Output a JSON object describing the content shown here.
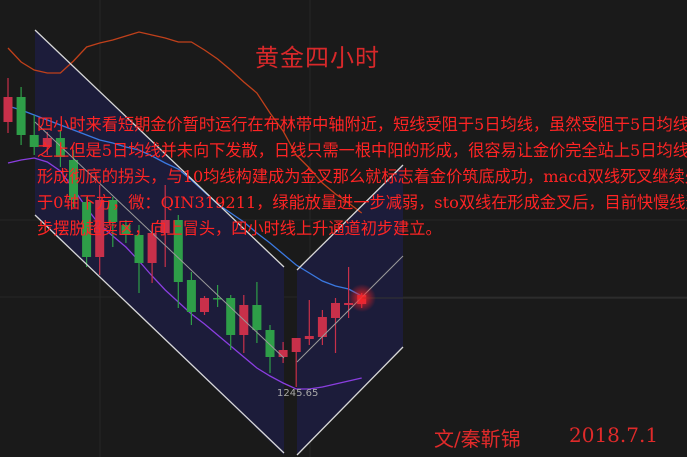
{
  "title": "黄金四小时",
  "paragraph_lines": [
    "四小时来看短期金价暂时运行在布林带中轴附近，短线受阻于5日均线，虽然受阻于5日均线",
    "之上但是5日均线并未向下发散，日线只需一根中阳的形成，很容易让金价完全站上5日均线",
    "形成彻底的拐头，与10均线构建成为金叉那么就标志着金价筑底成功，macd双线死叉继续处",
    "于0轴下方，微：QIN319211，绿能放量进一步减弱，sto双线在形成金叉后，目前快慢线逐",
    "步摆脱超卖区，向上冒头，四小时线上升通道初步建立。"
  ],
  "author": "文/秦靳锦",
  "date": "2018.7.1",
  "colors": {
    "background": "#1a1a1a",
    "up_candle": "#c8304a",
    "down_candle": "#2e9e48",
    "text": "#ff2424",
    "upper_band": "#c0401a",
    "middle_band": "#3a78e0",
    "lower_band": "#8a3ee0",
    "channel_fill": "#1c1c3a"
  },
  "chart_data": {
    "type": "candlestick",
    "title": "黄金四小时",
    "price_label": "1245.65",
    "grid": true,
    "candles": [
      {
        "o": 1272.15,
        "h": 1276.55,
        "l": 1271.05,
        "c": 1274.65
      },
      {
        "o": 1274.65,
        "h": 1275.65,
        "l": 1269.85,
        "c": 1270.85
      },
      {
        "o": 1270.85,
        "h": 1272.85,
        "l": 1268.85,
        "c": 1269.65
      },
      {
        "o": 1269.65,
        "h": 1271.15,
        "l": 1268.85,
        "c": 1270.55
      },
      {
        "o": 1270.55,
        "h": 1271.35,
        "l": 1267.65,
        "c": 1268.65
      },
      {
        "o": 1268.35,
        "h": 1269.35,
        "l": 1263.65,
        "c": 1264.35
      },
      {
        "o": 1264.15,
        "h": 1264.65,
        "l": 1257.65,
        "c": 1258.65
      },
      {
        "o": 1258.65,
        "h": 1265.85,
        "l": 1256.85,
        "c": 1264.35
      },
      {
        "o": 1264.35,
        "h": 1264.65,
        "l": 1259.65,
        "c": 1262.15
      },
      {
        "o": 1261.85,
        "h": 1262.35,
        "l": 1260.05,
        "c": 1260.85
      },
      {
        "o": 1260.85,
        "h": 1261.85,
        "l": 1255.05,
        "c": 1258.05
      },
      {
        "o": 1258.05,
        "h": 1261.85,
        "l": 1256.05,
        "c": 1261.05
      },
      {
        "o": 1261.05,
        "h": 1265.85,
        "l": 1257.65,
        "c": 1262.35
      },
      {
        "o": 1262.35,
        "h": 1262.85,
        "l": 1253.55,
        "c": 1256.15
      },
      {
        "o": 1256.35,
        "h": 1257.15,
        "l": 1251.85,
        "c": 1253.15
      },
      {
        "o": 1253.15,
        "h": 1254.75,
        "l": 1252.85,
        "c": 1254.55
      },
      {
        "o": 1254.55,
        "h": 1255.85,
        "l": 1253.65,
        "c": 1254.45
      },
      {
        "o": 1254.55,
        "h": 1254.85,
        "l": 1249.35,
        "c": 1250.85
      },
      {
        "o": 1250.85,
        "h": 1254.85,
        "l": 1249.05,
        "c": 1253.85
      },
      {
        "o": 1253.85,
        "h": 1256.15,
        "l": 1250.05,
        "c": 1251.35
      },
      {
        "o": 1251.35,
        "h": 1251.85,
        "l": 1247.05,
        "c": 1248.65
      },
      {
        "o": 1248.65,
        "h": 1250.15,
        "l": 1248.05,
        "c": 1249.35
      },
      {
        "o": 1249.15,
        "h": 1250.55,
        "l": 1245.65,
        "c": 1250.55
      },
      {
        "o": 1250.45,
        "h": 1254.35,
        "l": 1249.85,
        "c": 1250.75
      },
      {
        "o": 1250.65,
        "h": 1253.35,
        "l": 1249.85,
        "c": 1252.65
      },
      {
        "o": 1252.55,
        "h": 1254.55,
        "l": 1249.05,
        "c": 1254.05
      },
      {
        "o": 1253.85,
        "h": 1257.65,
        "l": 1252.55,
        "c": 1254.05
      },
      {
        "o": 1253.95,
        "h": 1255.05,
        "l": 1253.55,
        "c": 1254.85
      }
    ],
    "bands": {
      "upper": [
        1279.55,
        1278.15,
        1277.35,
        1277.05,
        1277.05,
        1278.25,
        1279.65,
        1280.05,
        1280.35,
        1280.75,
        1281.15,
        1280.85,
        1280.55,
        1280.15,
        1280.15,
        1279.35,
        1278.45,
        1277.35,
        1276.15,
        1275.05,
        1273.05,
        1271.25,
        1268.85,
        1267.55,
        1266.05,
        1264.95,
        1264.05,
        1263.05
      ],
      "middle": [
        1273.75,
        1273.35,
        1272.85,
        1272.35,
        1271.85,
        1271.35,
        1270.85,
        1270.35,
        1270.05,
        1269.65,
        1269.35,
        1268.75,
        1268.05,
        1267.45,
        1266.35,
        1265.15,
        1263.95,
        1263.05,
        1262.15,
        1261.05,
        1260.05,
        1258.95,
        1257.85,
        1257.05,
        1256.25,
        1255.75,
        1255.45,
        1254.75
      ],
      "lower": [
        1268.05,
        1268.35,
        1268.55,
        1268.15,
        1267.25,
        1265.45,
        1263.55,
        1261.85,
        1260.75,
        1259.65,
        1258.25,
        1256.75,
        1255.35,
        1254.15,
        1252.95,
        1251.95,
        1250.85,
        1249.75,
        1248.65,
        1247.55,
        1246.75,
        1246.05,
        1245.45,
        1245.45,
        1245.65,
        1245.95,
        1246.25,
        1246.55
      ]
    },
    "annotations": [
      "descending channel",
      "ascending channel"
    ]
  }
}
